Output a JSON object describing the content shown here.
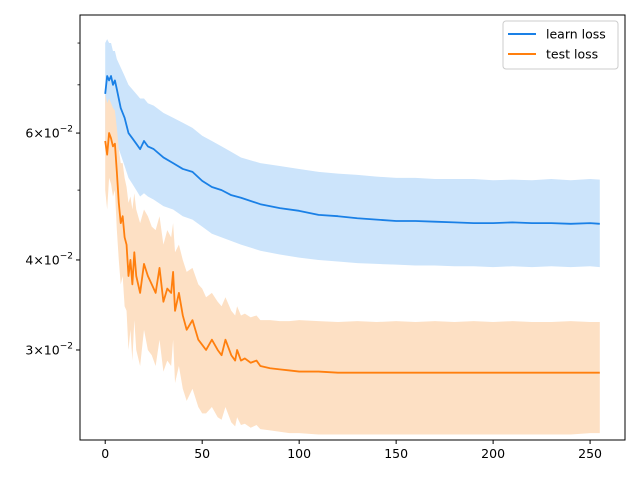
{
  "chart_data": {
    "type": "line",
    "title": "",
    "xlabel": "",
    "ylabel": "",
    "yscale": "log",
    "xlim": [
      -13,
      268
    ],
    "ylim": [
      0.0225,
      0.0875
    ],
    "grid": false,
    "legend_position": "top-right",
    "x_ticks": [
      {
        "value": 0,
        "label": "0"
      },
      {
        "value": 50,
        "label": "50"
      },
      {
        "value": 100,
        "label": "100"
      },
      {
        "value": 150,
        "label": "150"
      },
      {
        "value": 200,
        "label": "200"
      },
      {
        "value": 250,
        "label": "250"
      }
    ],
    "y_major_ticks": [
      {
        "value": 0.03,
        "base": "3",
        "mult": "×10",
        "exp": "−2"
      },
      {
        "value": 0.04,
        "base": "4",
        "mult": "×10",
        "exp": "−2"
      },
      {
        "value": 0.06,
        "base": "6",
        "mult": "×10",
        "exp": "−2"
      }
    ],
    "y_minor_ticks": [
      0.05,
      0.07,
      0.08
    ],
    "series": [
      {
        "name": "learn loss",
        "color": "#1a80e6",
        "band_color": "#cce4fb",
        "x": [
          0,
          1,
          2,
          3,
          4,
          5,
          6,
          8,
          10,
          12,
          14,
          16,
          18,
          20,
          22,
          25,
          30,
          35,
          40,
          45,
          50,
          55,
          60,
          65,
          70,
          80,
          90,
          100,
          110,
          120,
          130,
          140,
          150,
          160,
          170,
          180,
          190,
          200,
          210,
          220,
          230,
          240,
          250,
          255
        ],
        "mean": [
          0.068,
          0.072,
          0.071,
          0.072,
          0.07,
          0.071,
          0.069,
          0.065,
          0.063,
          0.06,
          0.059,
          0.058,
          0.057,
          0.0585,
          0.0575,
          0.057,
          0.0555,
          0.0545,
          0.0535,
          0.053,
          0.0515,
          0.0505,
          0.05,
          0.0492,
          0.0488,
          0.0478,
          0.0472,
          0.0468,
          0.0462,
          0.046,
          0.0457,
          0.0455,
          0.0453,
          0.0453,
          0.0452,
          0.0451,
          0.045,
          0.045,
          0.0451,
          0.045,
          0.045,
          0.0449,
          0.045,
          0.0449
        ],
        "upper": [
          0.08,
          0.081,
          0.08,
          0.08,
          0.078,
          0.078,
          0.076,
          0.074,
          0.072,
          0.07,
          0.069,
          0.068,
          0.067,
          0.067,
          0.066,
          0.0655,
          0.064,
          0.063,
          0.062,
          0.061,
          0.0595,
          0.0585,
          0.0575,
          0.0565,
          0.0555,
          0.0545,
          0.054,
          0.0535,
          0.053,
          0.0527,
          0.0525,
          0.0522,
          0.052,
          0.052,
          0.0518,
          0.0518,
          0.0518,
          0.0516,
          0.0517,
          0.0516,
          0.0518,
          0.0516,
          0.0518,
          0.0517
        ],
        "lower": [
          0.058,
          0.061,
          0.061,
          0.06,
          0.059,
          0.059,
          0.058,
          0.056,
          0.054,
          0.052,
          0.051,
          0.05,
          0.049,
          0.0495,
          0.049,
          0.0485,
          0.0475,
          0.047,
          0.046,
          0.0455,
          0.0445,
          0.0435,
          0.043,
          0.0425,
          0.042,
          0.0412,
          0.0407,
          0.0403,
          0.04,
          0.0398,
          0.0396,
          0.0395,
          0.0394,
          0.0393,
          0.0393,
          0.0392,
          0.0392,
          0.0391,
          0.0392,
          0.0391,
          0.0392,
          0.0391,
          0.0392,
          0.0391
        ]
      },
      {
        "name": "test loss",
        "color": "#ff7f0e",
        "band_color": "#fde0c4",
        "x": [
          0,
          1,
          2,
          3,
          4,
          5,
          6,
          7,
          8,
          9,
          10,
          11,
          12,
          13,
          14,
          15,
          16,
          18,
          20,
          22,
          24,
          26,
          28,
          30,
          32,
          34,
          35,
          36,
          38,
          40,
          42,
          45,
          48,
          50,
          52,
          55,
          58,
          60,
          62,
          65,
          67,
          68,
          70,
          72,
          75,
          78,
          80,
          85,
          90,
          95,
          100,
          110,
          120,
          130,
          140,
          150,
          160,
          170,
          180,
          190,
          200,
          210,
          220,
          230,
          240,
          250,
          255
        ],
        "mean": [
          0.0585,
          0.056,
          0.06,
          0.059,
          0.0575,
          0.058,
          0.053,
          0.048,
          0.045,
          0.046,
          0.043,
          0.042,
          0.038,
          0.04,
          0.037,
          0.041,
          0.038,
          0.036,
          0.0395,
          0.038,
          0.037,
          0.036,
          0.039,
          0.035,
          0.0365,
          0.036,
          0.0385,
          0.034,
          0.036,
          0.0335,
          0.032,
          0.033,
          0.031,
          0.0305,
          0.03,
          0.031,
          0.03,
          0.0295,
          0.031,
          0.0295,
          0.029,
          0.03,
          0.029,
          0.0292,
          0.0288,
          0.029,
          0.0285,
          0.0283,
          0.0282,
          0.0281,
          0.028,
          0.028,
          0.0279,
          0.0279,
          0.0279,
          0.0279,
          0.0279,
          0.0279,
          0.0279,
          0.0279,
          0.0279,
          0.0279,
          0.0279,
          0.0279,
          0.0279,
          0.0279,
          0.0279
        ],
        "upper": [
          0.068,
          0.066,
          0.067,
          0.066,
          0.065,
          0.0645,
          0.061,
          0.057,
          0.0545,
          0.0545,
          0.052,
          0.0505,
          0.048,
          0.049,
          0.047,
          0.0495,
          0.047,
          0.045,
          0.047,
          0.046,
          0.0445,
          0.044,
          0.046,
          0.042,
          0.044,
          0.043,
          0.045,
          0.041,
          0.042,
          0.04,
          0.0385,
          0.039,
          0.037,
          0.0365,
          0.0355,
          0.036,
          0.035,
          0.0345,
          0.0355,
          0.034,
          0.0335,
          0.0345,
          0.0335,
          0.0337,
          0.0333,
          0.0335,
          0.033,
          0.033,
          0.0329,
          0.0329,
          0.033,
          0.0329,
          0.0328,
          0.0329,
          0.0328,
          0.0329,
          0.0328,
          0.0329,
          0.0328,
          0.0329,
          0.0328,
          0.0329,
          0.0328,
          0.0328,
          0.0329,
          0.0328,
          0.0328
        ],
        "lower": [
          0.05,
          0.047,
          0.052,
          0.051,
          0.049,
          0.05,
          0.044,
          0.04,
          0.037,
          0.038,
          0.0345,
          0.034,
          0.03,
          0.032,
          0.029,
          0.033,
          0.03,
          0.0285,
          0.032,
          0.03,
          0.0295,
          0.0285,
          0.031,
          0.028,
          0.029,
          0.0285,
          0.031,
          0.027,
          0.0285,
          0.0265,
          0.0255,
          0.0265,
          0.025,
          0.0245,
          0.0245,
          0.025,
          0.0242,
          0.024,
          0.025,
          0.0238,
          0.0235,
          0.0242,
          0.0236,
          0.0237,
          0.0234,
          0.0236,
          0.0233,
          0.0232,
          0.0231,
          0.023,
          0.023,
          0.0229,
          0.0229,
          0.0229,
          0.0229,
          0.0229,
          0.0229,
          0.0229,
          0.0229,
          0.0229,
          0.0229,
          0.0229,
          0.0229,
          0.0229,
          0.0229,
          0.023,
          0.023
        ]
      }
    ]
  }
}
